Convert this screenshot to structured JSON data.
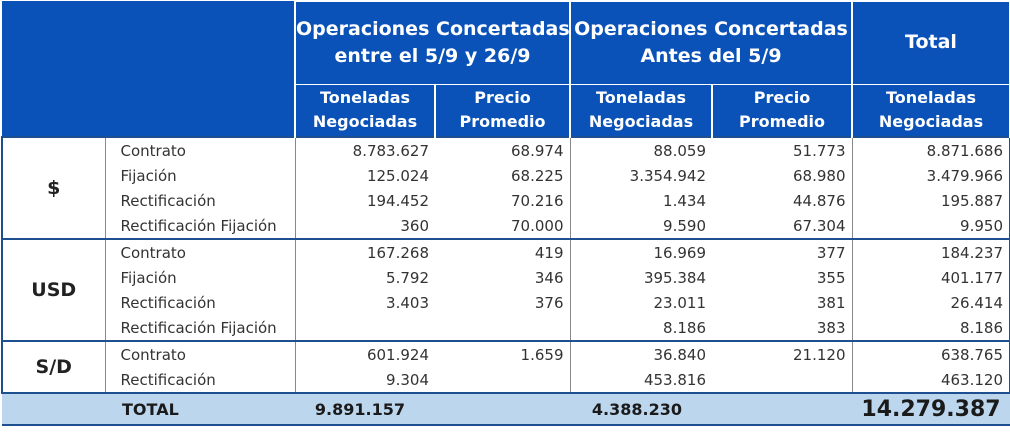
{
  "header": {
    "group1": [
      "Operaciones Concertadas",
      "entre el 5/9 y 26/9"
    ],
    "group2": [
      "Operaciones Concertadas",
      "Antes del 5/9"
    ],
    "total": "Total",
    "toneladas": [
      "Toneladas",
      "Negociadas"
    ],
    "precio": [
      "Precio",
      "Promedio"
    ]
  },
  "sections": [
    {
      "currency": "$",
      "rows": [
        {
          "label": "Contrato",
          "t1": "8.783.627",
          "p1": "68.974",
          "t2": "88.059",
          "p2": "51.773",
          "tot": "8.871.686"
        },
        {
          "label": "Fijación",
          "t1": "125.024",
          "p1": "68.225",
          "t2": "3.354.942",
          "p2": "68.980",
          "tot": "3.479.966"
        },
        {
          "label": "Rectificación",
          "t1": "194.452",
          "p1": "70.216",
          "t2": "1.434",
          "p2": "44.876",
          "tot": "195.887"
        },
        {
          "label": "Rectificación Fijación",
          "t1": "360",
          "p1": "70.000",
          "t2": "9.590",
          "p2": "67.304",
          "tot": "9.950"
        }
      ]
    },
    {
      "currency": "USD",
      "rows": [
        {
          "label": "Contrato",
          "t1": "167.268",
          "p1": "419",
          "t2": "16.969",
          "p2": "377",
          "tot": "184.237"
        },
        {
          "label": "Fijación",
          "t1": "5.792",
          "p1": "346",
          "t2": "395.384",
          "p2": "355",
          "tot": "401.177"
        },
        {
          "label": "Rectificación",
          "t1": "3.403",
          "p1": "376",
          "t2": "23.011",
          "p2": "381",
          "tot": "26.414"
        },
        {
          "label": "Rectificación Fijación",
          "t1": "",
          "p1": "",
          "t2": "8.186",
          "p2": "383",
          "tot": "8.186"
        }
      ]
    },
    {
      "currency": "S/D",
      "rows": [
        {
          "label": "Contrato",
          "t1": "601.924",
          "p1": "1.659",
          "t2": "36.840",
          "p2": "21.120",
          "tot": "638.765"
        },
        {
          "label": "Rectificación",
          "t1": "9.304",
          "p1": "",
          "t2": "453.816",
          "p2": "",
          "tot": "463.120"
        }
      ]
    }
  ],
  "total_row": {
    "label": "TOTAL",
    "t1": "9.891.157",
    "t2": "4.388.230",
    "grand": "14.279.387"
  }
}
